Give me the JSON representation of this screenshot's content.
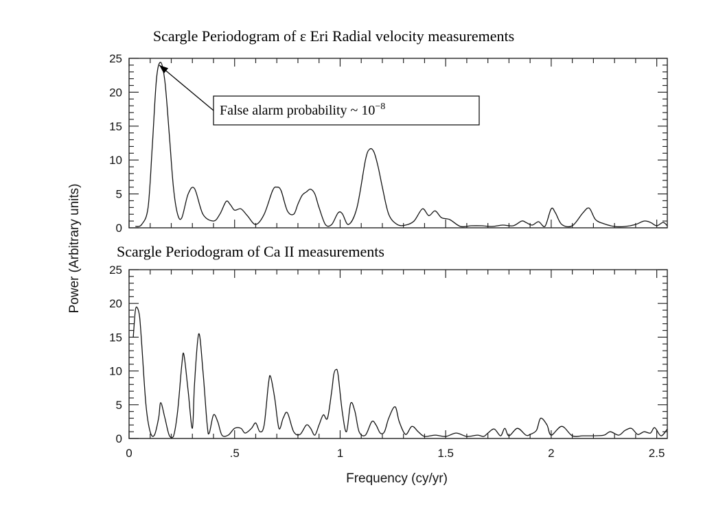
{
  "chart_data": [
    {
      "type": "line",
      "title": "Scargle Periodogram of ε Eri Radial velocity measurements",
      "xlabel": "Frequency (cy/yr)",
      "ylabel": "Power (Arbitrary units)",
      "xlim": [
        0,
        2.55
      ],
      "ylim": [
        0,
        25
      ],
      "xticks": [
        "0",
        ".5",
        "1",
        "1.5",
        "2",
        "2.5"
      ],
      "yticks": [
        "0",
        "5",
        "10",
        "15",
        "20",
        "25"
      ],
      "grid": false,
      "annotation": {
        "text": "False alarm probability ~ 10",
        "superscript": "−8",
        "target": [
          0.13,
          24.4
        ]
      },
      "series": [
        {
          "x": [
            0.03,
            0.06,
            0.09,
            0.11,
            0.13,
            0.15,
            0.17,
            0.19,
            0.21,
            0.23,
            0.25,
            0.28,
            0.31,
            0.35,
            0.4,
            0.43,
            0.46,
            0.48,
            0.5,
            0.53,
            0.56,
            0.6,
            0.64,
            0.68,
            0.7,
            0.72,
            0.75,
            0.78,
            0.8,
            0.82,
            0.84,
            0.86,
            0.88,
            0.9,
            0.93,
            0.96,
            0.99,
            1.01,
            1.04,
            1.08,
            1.12,
            1.14,
            1.16,
            1.18,
            1.2,
            1.23,
            1.27,
            1.31,
            1.35,
            1.39,
            1.42,
            1.45,
            1.48,
            1.52,
            1.57,
            1.62,
            1.67,
            1.72,
            1.77,
            1.82,
            1.86,
            1.88,
            1.91,
            1.94,
            1.97,
            2.0,
            2.02,
            2.05,
            2.1,
            2.15,
            2.18,
            2.21,
            2.25,
            2.3,
            2.35,
            2.4,
            2.44,
            2.47,
            2.5,
            2.53,
            2.55
          ],
          "y": [
            0.2,
            0.5,
            3.0,
            12.0,
            22.0,
            24.4,
            21.5,
            14.0,
            6.0,
            2.0,
            1.5,
            5.0,
            5.8,
            2.0,
            1.0,
            2.0,
            3.9,
            3.4,
            2.6,
            2.8,
            1.8,
            0.5,
            2.0,
            5.5,
            6.0,
            5.5,
            2.5,
            2.0,
            3.5,
            4.8,
            5.3,
            5.7,
            5.0,
            3.0,
            0.5,
            0.5,
            2.2,
            2.1,
            0.5,
            3.0,
            10.0,
            11.6,
            11.2,
            9.0,
            6.0,
            2.0,
            0.5,
            0.4,
            1.0,
            2.8,
            1.8,
            2.5,
            1.5,
            1.2,
            0.2,
            0.3,
            0.3,
            0.2,
            0.4,
            0.3,
            1.0,
            0.8,
            0.4,
            0.9,
            0.2,
            2.8,
            2.2,
            0.5,
            0.3,
            2.2,
            2.9,
            1.2,
            0.6,
            0.2,
            0.2,
            0.5,
            1.0,
            0.8,
            0.3,
            0.8,
            0.3
          ]
        }
      ]
    },
    {
      "type": "line",
      "title": "Scargle Periodogram of Ca II measurements",
      "xlabel": "Frequency (cy/yr)",
      "ylabel": "Power (Arbitrary units)",
      "xlim": [
        0,
        2.55
      ],
      "ylim": [
        0,
        25
      ],
      "xticks": [
        "0",
        ".5",
        "1",
        "1.5",
        "2",
        "2.5"
      ],
      "yticks": [
        "0",
        "5",
        "10",
        "15",
        "20",
        "25"
      ],
      "grid": false,
      "series": [
        {
          "x": [
            0.02,
            0.03,
            0.04,
            0.05,
            0.06,
            0.08,
            0.1,
            0.12,
            0.14,
            0.15,
            0.17,
            0.19,
            0.21,
            0.23,
            0.25,
            0.26,
            0.28,
            0.3,
            0.31,
            0.33,
            0.35,
            0.37,
            0.38,
            0.4,
            0.42,
            0.44,
            0.47,
            0.5,
            0.53,
            0.55,
            0.58,
            0.6,
            0.62,
            0.64,
            0.66,
            0.67,
            0.69,
            0.71,
            0.73,
            0.75,
            0.78,
            0.81,
            0.84,
            0.86,
            0.88,
            0.9,
            0.92,
            0.94,
            0.96,
            0.97,
            0.98,
            0.99,
            1.01,
            1.03,
            1.05,
            1.07,
            1.09,
            1.12,
            1.15,
            1.17,
            1.19,
            1.21,
            1.23,
            1.26,
            1.28,
            1.31,
            1.34,
            1.37,
            1.4,
            1.45,
            1.5,
            1.55,
            1.6,
            1.65,
            1.68,
            1.7,
            1.73,
            1.76,
            1.78,
            1.8,
            1.84,
            1.88,
            1.9,
            1.93,
            1.95,
            1.98,
            2.0,
            2.05,
            2.1,
            2.15,
            2.2,
            2.25,
            2.28,
            2.32,
            2.35,
            2.38,
            2.41,
            2.44,
            2.47,
            2.49,
            2.52,
            2.55
          ],
          "y": [
            15.0,
            19.0,
            19.3,
            18.0,
            14.0,
            5.0,
            1.0,
            0.5,
            3.0,
            5.3,
            3.0,
            0.5,
            0.3,
            4.0,
            11.0,
            12.4,
            7.0,
            1.5,
            8.0,
            15.5,
            10.0,
            2.0,
            0.8,
            3.5,
            2.5,
            0.5,
            0.5,
            1.5,
            1.5,
            0.8,
            1.5,
            2.3,
            1.0,
            2.0,
            8.0,
            9.2,
            6.0,
            1.5,
            3.0,
            3.8,
            1.0,
            0.6,
            2.0,
            1.5,
            0.5,
            2.0,
            3.5,
            3.0,
            7.0,
            9.5,
            10.2,
            9.5,
            4.0,
            1.0,
            5.2,
            4.0,
            1.0,
            0.5,
            2.5,
            2.0,
            0.8,
            1.0,
            3.0,
            4.7,
            2.5,
            0.6,
            1.8,
            1.0,
            0.3,
            0.5,
            0.3,
            0.8,
            0.3,
            0.5,
            0.3,
            0.8,
            1.4,
            0.4,
            1.5,
            0.4,
            1.5,
            0.5,
            0.6,
            1.2,
            3.0,
            2.0,
            0.5,
            1.8,
            0.4,
            0.4,
            0.4,
            0.5,
            1.0,
            0.5,
            1.2,
            1.5,
            0.6,
            1.0,
            0.8,
            1.6,
            0.4,
            1.4
          ]
        }
      ]
    }
  ]
}
